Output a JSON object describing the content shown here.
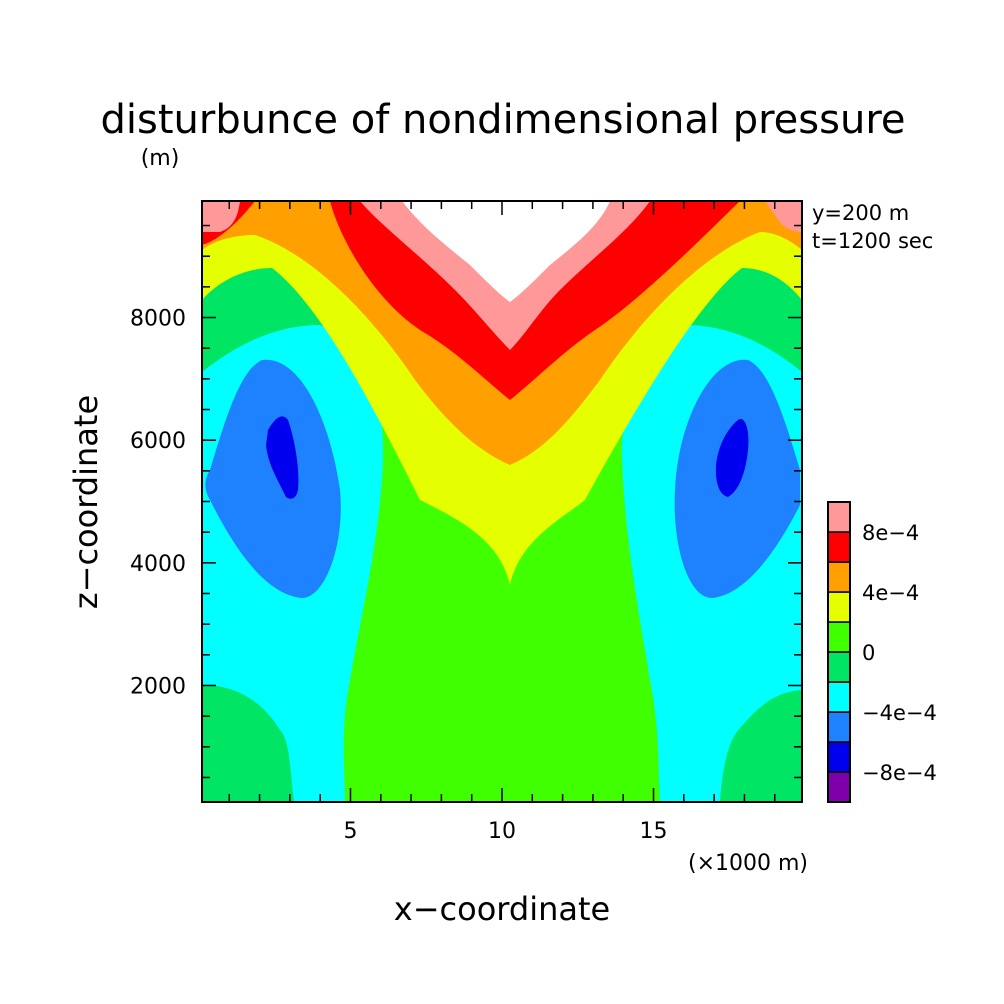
{
  "chart_data": {
    "type": "contour",
    "title": "disturbunce of nondimensional pressure",
    "units": "(m)",
    "xlabel": "x−coordinate",
    "ylabel": "z−coordinate",
    "x_unit_note": "(×1000 m)",
    "annotations": [
      "y=200 m",
      "t=1200 sec"
    ],
    "xlim": [
      0.1,
      19.9
    ],
    "ylim": [
      100,
      9900
    ],
    "x_ticks": [
      5,
      10,
      15
    ],
    "x_tick_labels": [
      "5",
      "10",
      "15"
    ],
    "y_ticks": [
      2000,
      4000,
      6000,
      8000
    ],
    "y_tick_labels": [
      "2000",
      "4000",
      "6000",
      "8000"
    ],
    "colorbar": {
      "levels": [
        -0.0012,
        -0.001,
        -0.0008,
        -0.0006,
        -0.0004,
        -0.0002,
        0,
        0.0002,
        0.0004,
        0.0006,
        0.0008,
        0.001,
        0.0012
      ],
      "labels": [
        "−8e−4",
        "−4e−4",
        "0",
        "4e−4",
        "8e−4"
      ],
      "colors": [
        "#7f00aa",
        "#0000ee",
        "#1e82ff",
        "#00ffff",
        "#00e664",
        "#40ff00",
        "#e6ff00",
        "#ffa000",
        "#ff0000",
        "#ff9999",
        "#ffffff"
      ]
    },
    "features": [
      {
        "type": "low",
        "x": 2.9,
        "z": 5800,
        "value": -0.0008
      },
      {
        "type": "low",
        "x": 17.6,
        "z": 5800,
        "value": -0.0008
      },
      {
        "type": "high",
        "x": 10.0,
        "z": 9600,
        "value": 0.001
      },
      {
        "type": "high",
        "x": 0.5,
        "z": 9600,
        "value": 0.0009
      },
      {
        "type": "high",
        "x": 19.5,
        "z": 9600,
        "value": 0.0009
      }
    ]
  }
}
